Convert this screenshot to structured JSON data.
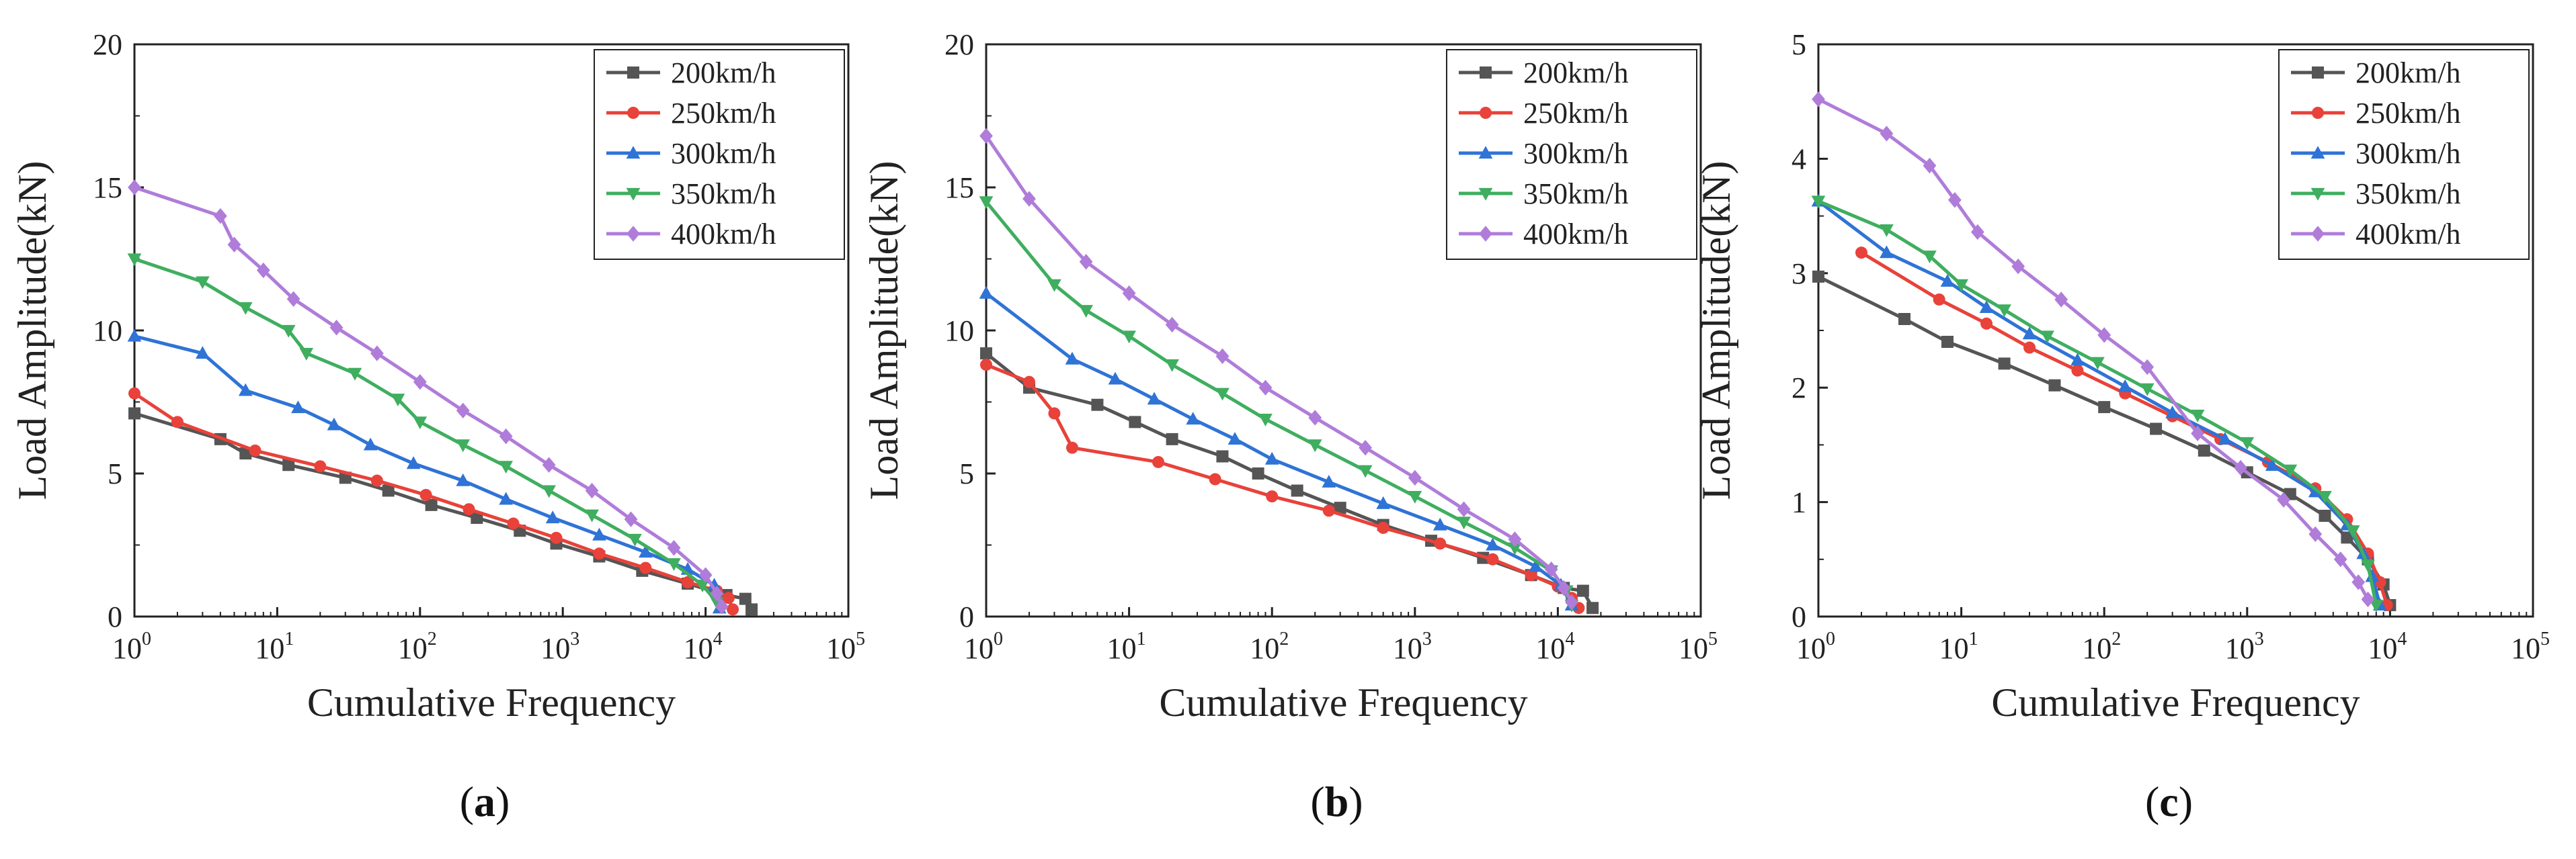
{
  "colors": {
    "200km/h": "#555555",
    "250km/h": "#e8423a",
    "300km/h": "#2f73d6",
    "350km/h": "#3fae5f",
    "400km/h": "#b07cd9"
  },
  "chart_data": [
    {
      "type": "line",
      "panel_label_text": "a",
      "xlabel": "Cumulative Frequency",
      "ylabel": "Load Amplitude(kN)",
      "xscale": "log",
      "xlim": [
        1,
        100000
      ],
      "ylim": [
        0,
        20
      ],
      "yticks": [
        "0",
        "5",
        "10",
        "15",
        "20"
      ],
      "xticks": [
        "10^0",
        "10^1",
        "10^2",
        "10^3",
        "10^4",
        "10^5"
      ],
      "legend_position": "top-right",
      "series": [
        {
          "name": "200km/h",
          "marker": "square",
          "x": [
            1,
            4,
            6,
            12,
            30,
            60,
            120,
            250,
            500,
            900,
            1800,
            3600,
            7500,
            14000,
            19000,
            21000
          ],
          "y": [
            7.1,
            6.2,
            5.7,
            5.3,
            4.85,
            4.4,
            3.9,
            3.45,
            3.0,
            2.55,
            2.1,
            1.6,
            1.15,
            0.75,
            0.62,
            0.25
          ]
        },
        {
          "name": "250km/h",
          "marker": "circle",
          "x": [
            1,
            2,
            7,
            20,
            50,
            110,
            220,
            450,
            900,
            1800,
            3800,
            7500,
            12000,
            14500,
            15500
          ],
          "y": [
            7.8,
            6.8,
            5.8,
            5.25,
            4.75,
            4.25,
            3.75,
            3.25,
            2.75,
            2.2,
            1.7,
            1.2,
            0.9,
            0.65,
            0.25
          ]
        },
        {
          "name": "300km/h",
          "marker": "triangle-up",
          "x": [
            1,
            3,
            6,
            14,
            25,
            45,
            90,
            200,
            400,
            850,
            1800,
            3800,
            7500,
            11500,
            12500
          ],
          "y": [
            9.8,
            9.2,
            7.9,
            7.3,
            6.7,
            6.0,
            5.35,
            4.75,
            4.1,
            3.45,
            2.85,
            2.25,
            1.65,
            1.1,
            0.3
          ]
        },
        {
          "name": "350km/h",
          "marker": "triangle-down",
          "x": [
            1,
            3,
            6,
            12,
            16,
            35,
            70,
            100,
            200,
            400,
            800,
            1600,
            3200,
            6000,
            9500,
            12000
          ],
          "y": [
            12.5,
            11.7,
            10.8,
            10.0,
            9.2,
            8.5,
            7.6,
            6.8,
            6.0,
            5.25,
            4.4,
            3.55,
            2.7,
            1.85,
            1.1,
            0.5
          ]
        },
        {
          "name": "400km/h",
          "marker": "diamond",
          "x": [
            1,
            4,
            5,
            8,
            13,
            26,
            50,
            100,
            200,
            400,
            800,
            1600,
            3000,
            6000,
            10000,
            12000,
            13000
          ],
          "y": [
            15.0,
            14.0,
            13.0,
            12.1,
            11.1,
            10.1,
            9.2,
            8.2,
            7.2,
            6.3,
            5.3,
            4.4,
            3.4,
            2.4,
            1.45,
            0.8,
            0.35
          ]
        }
      ]
    },
    {
      "type": "line",
      "panel_label_text": "b",
      "xlabel": "Cumulative Frequency",
      "ylabel": "Load Amplitude(kN)",
      "xscale": "log",
      "xlim": [
        1,
        100000
      ],
      "ylim": [
        0,
        20
      ],
      "yticks": [
        "0",
        "5",
        "10",
        "15",
        "20"
      ],
      "xticks": [
        "10^0",
        "10^1",
        "10^2",
        "10^3",
        "10^4",
        "10^5"
      ],
      "legend_position": "top-right",
      "series": [
        {
          "name": "200km/h",
          "marker": "square",
          "x": [
            1,
            2,
            6,
            11,
            20,
            45,
            80,
            150,
            300,
            600,
            1300,
            3000,
            6500,
            11000,
            15000,
            17500
          ],
          "y": [
            9.2,
            8.0,
            7.4,
            6.8,
            6.2,
            5.6,
            5.0,
            4.4,
            3.8,
            3.2,
            2.65,
            2.05,
            1.45,
            1.0,
            0.9,
            0.3
          ]
        },
        {
          "name": "250km/h",
          "marker": "circle",
          "x": [
            1,
            2,
            3,
            4,
            16,
            40,
            100,
            250,
            600,
            1500,
            3500,
            6500,
            10000,
            12500,
            14000
          ],
          "y": [
            8.8,
            8.2,
            7.1,
            5.9,
            5.4,
            4.8,
            4.2,
            3.7,
            3.1,
            2.55,
            2.0,
            1.45,
            1.05,
            0.65,
            0.3
          ]
        },
        {
          "name": "300km/h",
          "marker": "triangle-up",
          "x": [
            1,
            4,
            8,
            15,
            28,
            55,
            100,
            250,
            600,
            1500,
            3500,
            7000,
            10500,
            12500
          ],
          "y": [
            11.3,
            9.0,
            8.3,
            7.6,
            6.9,
            6.2,
            5.5,
            4.7,
            3.95,
            3.2,
            2.5,
            1.75,
            1.1,
            0.4
          ]
        },
        {
          "name": "350km/h",
          "marker": "triangle-down",
          "x": [
            1,
            3,
            5,
            10,
            20,
            45,
            90,
            200,
            450,
            1000,
            2200,
            5000,
            9000,
            11500,
            12500
          ],
          "y": [
            14.5,
            11.6,
            10.7,
            9.8,
            8.8,
            7.8,
            6.9,
            6.0,
            5.1,
            4.2,
            3.3,
            2.4,
            1.6,
            0.9,
            0.4
          ]
        },
        {
          "name": "400km/h",
          "marker": "diamond",
          "x": [
            1,
            2,
            5,
            10,
            20,
            45,
            90,
            200,
            450,
            1000,
            2200,
            5000,
            9000,
            11000,
            12500
          ],
          "y": [
            16.8,
            14.6,
            12.4,
            11.3,
            10.2,
            9.1,
            8.0,
            6.95,
            5.9,
            4.85,
            3.75,
            2.7,
            1.65,
            1.0,
            0.5
          ]
        }
      ]
    },
    {
      "type": "line",
      "panel_label_text": "c",
      "xlabel": "Cumulative Frequency",
      "ylabel": "Load Amplitude(kN)",
      "xscale": "log",
      "xlim": [
        1,
        100000
      ],
      "ylim": [
        0,
        5
      ],
      "yticks": [
        "0",
        "1",
        "2",
        "3",
        "4",
        "5"
      ],
      "xticks": [
        "10^0",
        "10^1",
        "10^2",
        "10^3",
        "10^4",
        "10^5"
      ],
      "legend_position": "top-right",
      "series": [
        {
          "name": "200km/h",
          "marker": "square",
          "x": [
            1,
            4,
            8,
            20,
            45,
            100,
            230,
            500,
            1000,
            2000,
            3500,
            5000,
            7000,
            9000,
            10000
          ],
          "y": [
            2.97,
            2.6,
            2.4,
            2.21,
            2.02,
            1.83,
            1.64,
            1.45,
            1.26,
            1.07,
            0.88,
            0.69,
            0.5,
            0.28,
            0.1
          ]
        },
        {
          "name": "250km/h",
          "marker": "circle",
          "x": [
            2,
            7,
            15,
            30,
            65,
            140,
            300,
            650,
            1400,
            3000,
            5000,
            7000,
            8500,
            9500
          ],
          "y": [
            3.18,
            2.77,
            2.56,
            2.35,
            2.15,
            1.95,
            1.75,
            1.55,
            1.35,
            1.12,
            0.85,
            0.55,
            0.3,
            0.1
          ]
        },
        {
          "name": "300km/h",
          "marker": "triangle-up",
          "x": [
            1,
            3,
            8,
            15,
            30,
            65,
            140,
            300,
            700,
            1500,
            3000,
            5000,
            6500,
            7500,
            8500
          ],
          "y": [
            3.63,
            3.18,
            2.93,
            2.7,
            2.47,
            2.24,
            2.01,
            1.78,
            1.55,
            1.32,
            1.09,
            0.8,
            0.55,
            0.35,
            0.1
          ]
        },
        {
          "name": "350km/h",
          "marker": "triangle-down",
          "x": [
            1,
            3,
            6,
            10,
            20,
            40,
            90,
            200,
            450,
            1000,
            2000,
            3500,
            5500,
            7000,
            8000
          ],
          "y": [
            3.63,
            3.38,
            3.15,
            2.9,
            2.68,
            2.45,
            2.22,
            1.99,
            1.76,
            1.52,
            1.28,
            1.05,
            0.75,
            0.45,
            0.1
          ]
        },
        {
          "name": "400km/h",
          "marker": "diamond",
          "x": [
            1,
            3,
            6,
            9,
            13,
            25,
            50,
            100,
            200,
            450,
            900,
            1800,
            3000,
            4500,
            6000,
            7000
          ],
          "y": [
            4.52,
            4.22,
            3.94,
            3.64,
            3.36,
            3.06,
            2.77,
            2.46,
            2.18,
            1.6,
            1.3,
            1.02,
            0.72,
            0.5,
            0.3,
            0.15
          ]
        }
      ]
    }
  ]
}
